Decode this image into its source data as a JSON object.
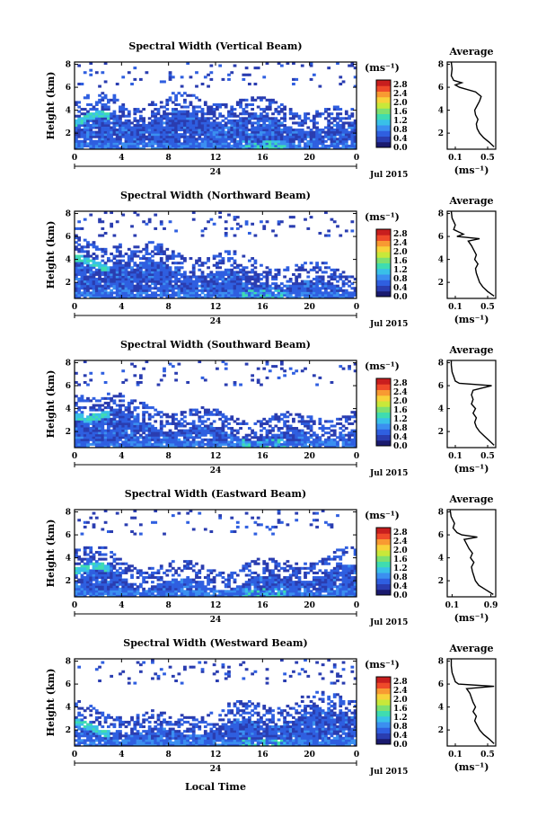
{
  "figure": {
    "common_xlabel": "Local Time",
    "date_label": "Jul 2015",
    "day_label": "24",
    "ylabel": "Height (km)",
    "unit_label": "(ms⁻¹)",
    "profile_title": "Average",
    "profile_xlabel": "(ms⁻¹)"
  },
  "chart_data": [
    {
      "type": "heatmap",
      "title": "Spectral Width (Vertical Beam)",
      "xlabel": "Local Time",
      "ylabel": "Height (km)",
      "x_ticks": [
        "0",
        "4",
        "8",
        "12",
        "16",
        "20",
        "0"
      ],
      "xlim": [
        0,
        24
      ],
      "y_ticks": [
        "2",
        "4",
        "6",
        "8"
      ],
      "ylim": [
        0.6,
        8.2
      ],
      "colorbar": {
        "label": "(ms⁻¹)",
        "ticks": [
          "0.0",
          "0.4",
          "0.8",
          "1.2",
          "1.6",
          "2.0",
          "2.4",
          "2.8"
        ],
        "range": [
          0,
          3.0
        ]
      },
      "description_values": {
        "main_echo_top_km": [
          3.2,
          4.2
        ],
        "max_width_approx": 1.3
      },
      "profile": {
        "title": "Average",
        "xlabel": "(ms⁻¹)",
        "x_ticks": [
          "0.1",
          "0.5"
        ],
        "xlim": [
          0.0,
          0.6
        ],
        "ylim": [
          0.6,
          8.2
        ],
        "y_ticks": [
          "2",
          "4",
          "6",
          "8"
        ],
        "height": [
          0.8,
          1.2,
          1.6,
          2.0,
          2.4,
          2.8,
          3.2,
          3.6,
          4.0,
          4.4,
          4.8,
          5.2,
          5.6,
          6.0,
          6.2,
          6.4,
          6.6,
          7.0,
          7.6,
          8.2
        ],
        "value": [
          0.58,
          0.52,
          0.45,
          0.4,
          0.37,
          0.36,
          0.38,
          0.35,
          0.34,
          0.37,
          0.4,
          0.42,
          0.35,
          0.15,
          0.1,
          0.18,
          0.08,
          0.05,
          0.06,
          0.05
        ]
      }
    },
    {
      "type": "heatmap",
      "title": "Spectral Width (Northward Beam)",
      "xlabel": "Local Time",
      "ylabel": "Height (km)",
      "x_ticks": [
        "0",
        "4",
        "8",
        "12",
        "16",
        "20",
        "0"
      ],
      "xlim": [
        0,
        24
      ],
      "y_ticks": [
        "2",
        "4",
        "6",
        "8"
      ],
      "ylim": [
        0.6,
        8.2
      ],
      "colorbar": {
        "label": "(ms⁻¹)",
        "ticks": [
          "0.0",
          "0.4",
          "0.8",
          "1.2",
          "1.6",
          "2.0",
          "2.4",
          "2.8"
        ],
        "range": [
          0,
          3.0
        ]
      },
      "profile": {
        "title": "Average",
        "xlabel": "(ms⁻¹)",
        "x_ticks": [
          "0.1",
          "0.5"
        ],
        "xlim": [
          0.0,
          0.6
        ],
        "ylim": [
          0.6,
          8.2
        ],
        "y_ticks": [
          "2",
          "4",
          "6",
          "8"
        ],
        "height": [
          0.8,
          1.2,
          1.6,
          2.0,
          2.4,
          2.8,
          3.2,
          3.6,
          4.0,
          4.4,
          4.8,
          5.2,
          5.6,
          5.8,
          6.0,
          6.2,
          6.6,
          7.0,
          7.6,
          8.2
        ],
        "value": [
          0.58,
          0.5,
          0.44,
          0.4,
          0.38,
          0.36,
          0.35,
          0.38,
          0.34,
          0.36,
          0.33,
          0.3,
          0.26,
          0.4,
          0.12,
          0.2,
          0.08,
          0.1,
          0.06,
          0.05
        ]
      }
    },
    {
      "type": "heatmap",
      "title": "Spectral Width (Southward Beam)",
      "xlabel": "Local Time",
      "ylabel": "Height (km)",
      "x_ticks": [
        "0",
        "4",
        "8",
        "12",
        "16",
        "20",
        "0"
      ],
      "xlim": [
        0,
        24
      ],
      "y_ticks": [
        "2",
        "4",
        "6",
        "8"
      ],
      "ylim": [
        0.6,
        8.2
      ],
      "colorbar": {
        "label": "(ms⁻¹)",
        "ticks": [
          "0.0",
          "0.4",
          "0.8",
          "1.2",
          "1.6",
          "2.0",
          "2.4",
          "2.8"
        ],
        "range": [
          0,
          3.0
        ]
      },
      "profile": {
        "title": "Average",
        "xlabel": "(ms⁻¹)",
        "x_ticks": [
          "0.1",
          "0.5"
        ],
        "xlim": [
          0.0,
          0.6
        ],
        "ylim": [
          0.6,
          8.2
        ],
        "y_ticks": [
          "2",
          "4",
          "6",
          "8"
        ],
        "height": [
          0.8,
          1.2,
          1.6,
          2.0,
          2.4,
          2.8,
          3.2,
          3.6,
          4.0,
          4.4,
          4.8,
          5.2,
          5.6,
          6.0,
          6.2,
          6.4,
          6.8,
          7.2,
          7.8,
          8.2
        ],
        "value": [
          0.58,
          0.52,
          0.46,
          0.4,
          0.36,
          0.34,
          0.36,
          0.32,
          0.35,
          0.3,
          0.32,
          0.3,
          0.32,
          0.55,
          0.15,
          0.1,
          0.08,
          0.06,
          0.05,
          0.05
        ]
      }
    },
    {
      "type": "heatmap",
      "title": "Spectral Width (Eastward Beam)",
      "xlabel": "Local Time",
      "ylabel": "Height (km)",
      "x_ticks": [
        "0",
        "4",
        "8",
        "12",
        "16",
        "20",
        "0"
      ],
      "xlim": [
        0,
        24
      ],
      "y_ticks": [
        "2",
        "4",
        "6",
        "8"
      ],
      "ylim": [
        0.6,
        8.2
      ],
      "colorbar": {
        "label": "(ms⁻¹)",
        "ticks": [
          "0.0",
          "0.4",
          "0.8",
          "1.2",
          "1.6",
          "2.0",
          "2.4",
          "2.8"
        ],
        "range": [
          0,
          3.0
        ]
      },
      "profile": {
        "title": "Average",
        "xlabel": "(ms⁻¹)",
        "x_ticks": [
          "0.1",
          "0.9"
        ],
        "xlim": [
          0.0,
          1.0
        ],
        "ylim": [
          0.6,
          8.2
        ],
        "y_ticks": [
          "2",
          "4",
          "6",
          "8"
        ],
        "height": [
          0.8,
          1.2,
          1.6,
          2.0,
          2.4,
          2.8,
          3.2,
          3.6,
          4.0,
          4.4,
          4.8,
          5.2,
          5.6,
          5.8,
          6.0,
          6.2,
          6.6,
          7.0,
          7.6,
          8.2
        ],
        "value": [
          0.95,
          0.8,
          0.65,
          0.58,
          0.55,
          0.52,
          0.5,
          0.55,
          0.48,
          0.52,
          0.45,
          0.4,
          0.35,
          0.62,
          0.3,
          0.2,
          0.12,
          0.15,
          0.08,
          0.06
        ]
      }
    },
    {
      "type": "heatmap",
      "title": "Spectral Width (Westward Beam)",
      "xlabel": "Local Time",
      "ylabel": "Height (km)",
      "x_ticks": [
        "0",
        "4",
        "8",
        "12",
        "16",
        "20",
        "0"
      ],
      "xlim": [
        0,
        24
      ],
      "y_ticks": [
        "2",
        "4",
        "6",
        "8"
      ],
      "ylim": [
        0.6,
        8.2
      ],
      "colorbar": {
        "label": "(ms⁻¹)",
        "ticks": [
          "0.0",
          "0.4",
          "0.8",
          "1.2",
          "1.6",
          "2.0",
          "2.4",
          "2.8"
        ],
        "range": [
          0,
          3.0
        ]
      },
      "profile": {
        "title": "Average",
        "xlabel": "(ms⁻¹)",
        "x_ticks": [
          "0.1",
          "0.5"
        ],
        "xlim": [
          0.0,
          0.6
        ],
        "ylim": [
          0.6,
          8.2
        ],
        "y_ticks": [
          "2",
          "4",
          "6",
          "8"
        ],
        "height": [
          0.8,
          1.2,
          1.6,
          2.0,
          2.4,
          2.8,
          3.2,
          3.6,
          4.0,
          4.4,
          4.8,
          5.2,
          5.6,
          5.8,
          6.0,
          6.2,
          6.6,
          7.0,
          7.6,
          8.2
        ],
        "value": [
          0.58,
          0.52,
          0.45,
          0.4,
          0.37,
          0.34,
          0.36,
          0.32,
          0.35,
          0.32,
          0.3,
          0.28,
          0.24,
          0.58,
          0.14,
          0.1,
          0.08,
          0.06,
          0.05,
          0.05
        ]
      }
    }
  ],
  "colormap": [
    "#1a1a6e",
    "#2a3db0",
    "#2f5fe0",
    "#3b8ff0",
    "#39c0e8",
    "#3fdcb0",
    "#7ee070",
    "#c8e83a",
    "#f8d23a",
    "#f89a32",
    "#ef4a2a",
    "#c81e1e"
  ]
}
